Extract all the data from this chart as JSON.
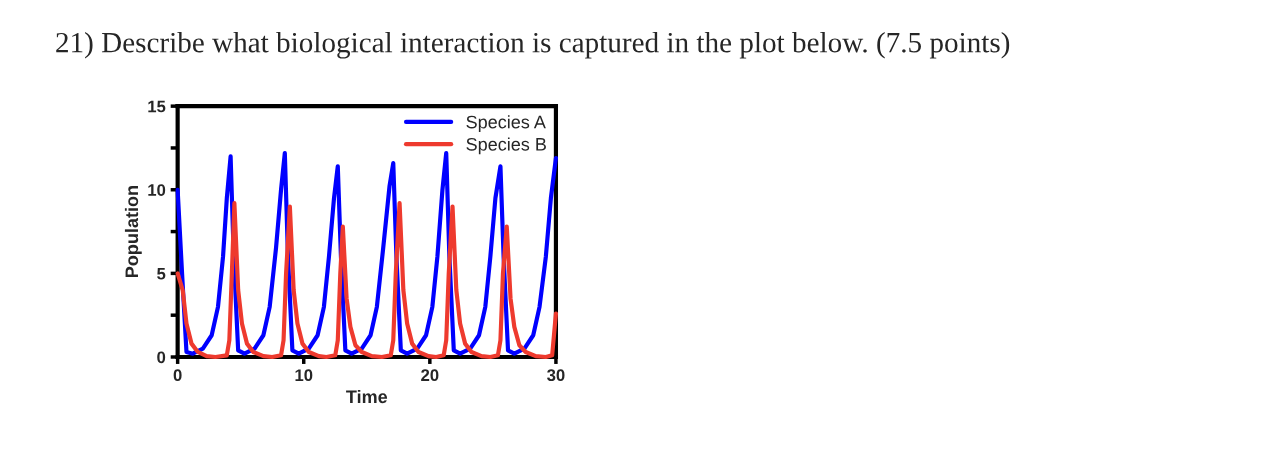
{
  "chart_data": {
    "type": "line",
    "title": "21) Describe what biological interaction is captured in the plot below. (7.5 points)",
    "xlabel": "Time",
    "ylabel": "Population",
    "xlim": [
      0,
      30
    ],
    "xticks": [
      0,
      10,
      20,
      30
    ],
    "ylim": [
      0,
      15
    ],
    "yticks": [
      0,
      {
        "value": 2.5,
        "label": null
      },
      5,
      {
        "value": 7.5,
        "label": null
      },
      10,
      {
        "value": 12.5,
        "label": null
      },
      15
    ],
    "legend": "top right",
    "grid": false,
    "series": [
      {
        "name": "Species A",
        "color": "#0000ff",
        "x": [
          0,
          0.35,
          0.7,
          1.2,
          2.0,
          2.7,
          3.2,
          3.6,
          3.9,
          4.2,
          4.45,
          4.8,
          5.3,
          6.1,
          6.8,
          7.3,
          7.8,
          8.2,
          8.5,
          8.75,
          9.1,
          9.6,
          10.4,
          11.1,
          11.6,
          12.0,
          12.4,
          12.7,
          12.95,
          13.3,
          13.8,
          14.6,
          15.3,
          15.8,
          16.3,
          16.8,
          17.1,
          17.35,
          17.7,
          18.2,
          19.0,
          19.7,
          20.2,
          20.6,
          21.0,
          21.3,
          21.55,
          21.9,
          22.4,
          23.2,
          23.9,
          24.4,
          24.8,
          25.2,
          25.6,
          25.85,
          26.2,
          26.7,
          27.5,
          28.2,
          28.7,
          29.2,
          29.6,
          30
        ],
        "values": [
          10,
          5,
          0.3,
          0.2,
          0.5,
          1.3,
          3,
          6,
          9.5,
          12,
          6,
          0.4,
          0.2,
          0.5,
          1.3,
          3,
          6.5,
          10,
          12.2,
          6,
          0.4,
          0.2,
          0.5,
          1.3,
          3,
          6,
          9.5,
          11.4,
          6,
          0.4,
          0.2,
          0.5,
          1.3,
          3,
          6.5,
          10.2,
          11.6,
          6,
          0.4,
          0.2,
          0.5,
          1.3,
          3,
          6,
          10,
          12.2,
          6,
          0.4,
          0.2,
          0.5,
          1.3,
          3,
          6,
          9.5,
          11.4,
          6,
          0.4,
          0.2,
          0.5,
          1.3,
          3,
          6,
          9.5,
          11.9
        ]
      },
      {
        "name": "Species B",
        "color": "#ee3a2e",
        "x": [
          0,
          0.4,
          0.7,
          1.1,
          1.6,
          2.3,
          3.0,
          3.9,
          4.1,
          4.3,
          4.5,
          4.8,
          5.1,
          5.5,
          6.0,
          6.8,
          7.5,
          8.2,
          8.4,
          8.6,
          8.9,
          9.2,
          9.5,
          9.9,
          10.4,
          11.2,
          11.8,
          12.5,
          12.7,
          12.9,
          13.1,
          13.4,
          13.7,
          14.1,
          14.6,
          15.4,
          16.2,
          16.9,
          17.1,
          17.3,
          17.6,
          17.9,
          18.2,
          18.6,
          19.1,
          19.9,
          20.5,
          21.1,
          21.3,
          21.5,
          21.8,
          22.1,
          22.4,
          22.8,
          23.3,
          24.1,
          24.8,
          25.4,
          25.6,
          25.8,
          26.1,
          26.4,
          26.7,
          27.1,
          27.6,
          28.4,
          29.2,
          29.7,
          30
        ],
        "values": [
          5,
          4,
          2,
          0.8,
          0.3,
          0.05,
          0,
          0.1,
          1,
          5,
          9.2,
          4,
          2,
          0.8,
          0.3,
          0.05,
          0,
          0.1,
          1,
          5,
          9.0,
          4,
          2,
          0.8,
          0.3,
          0.05,
          0,
          0.1,
          1,
          5,
          7.8,
          3.5,
          1.8,
          0.7,
          0.3,
          0.05,
          0,
          0.1,
          1,
          5,
          9.2,
          4,
          2,
          0.8,
          0.3,
          0.05,
          0,
          0.1,
          1,
          5,
          9.0,
          4,
          2,
          0.8,
          0.3,
          0.05,
          0,
          0.1,
          1,
          5,
          7.8,
          3.5,
          1.8,
          0.7,
          0.3,
          0.05,
          0,
          0.1,
          2.6
        ]
      }
    ]
  }
}
